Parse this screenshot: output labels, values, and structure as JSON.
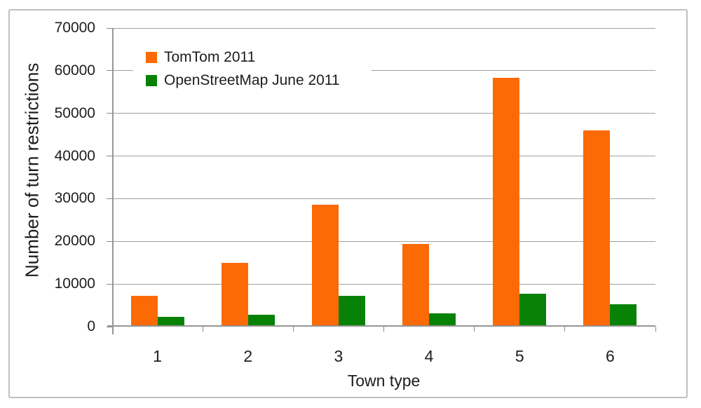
{
  "frame": {
    "border_color": "#bfbfbf",
    "background": "#ffffff"
  },
  "colors": {
    "tomtom_orange": "#fb6a04",
    "osm_green": "#078207",
    "gridline": "#a0a0a0",
    "axis": "#969696",
    "text": "#1d1d1d"
  },
  "chart_data": {
    "type": "bar",
    "title": "",
    "xlabel": "Town type",
    "ylabel": "Number of turn restrictions",
    "categories": [
      "1",
      "2",
      "3",
      "4",
      "5",
      "6"
    ],
    "series": [
      {
        "name": "TomTom 2011",
        "color": "#fb6a04",
        "values": [
          7000,
          14800,
          28500,
          19300,
          58200,
          45800
        ]
      },
      {
        "name": "OpenStreetMap June 2011",
        "color": "#078207",
        "values": [
          2200,
          2700,
          7100,
          3000,
          7500,
          5100
        ]
      }
    ],
    "ylim": [
      0,
      70000
    ],
    "yticks": [
      0,
      10000,
      20000,
      30000,
      40000,
      50000,
      60000,
      70000
    ],
    "grid": "horizontal-only",
    "legend_position": "inside-top-left"
  }
}
